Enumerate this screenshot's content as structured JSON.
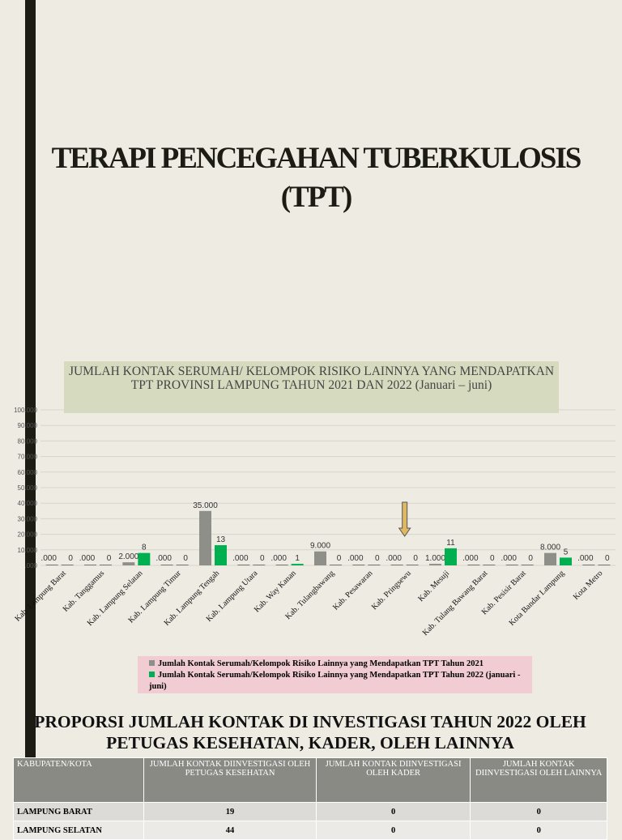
{
  "title": "TERAPI PENCEGAHAN TUBERKULOSIS (TPT)",
  "chart_data": {
    "type": "bar",
    "title": "JUMLAH KONTAK SERUMAH/ KELOMPOK RISIKO LAINNYA YANG MENDAPATKAN TPT PROVINSI LAMPUNG TAHUN 2021 DAN 2022 (Januari – juni)",
    "categories": [
      "Kab. Lampung Barat",
      "Kab. Tanggamus",
      "Kab. Lampung Selatan",
      "Kab. Lampung Timur",
      "Kab. Lampung Tengah",
      "Kab. Lampung Utara",
      "Kab. Way Kanan",
      "Kab. Tulangbawang",
      "Kab. Pesawaran",
      "Kab. Pringsewu",
      "Kab. Mesuji",
      "Kab. Tulang Bawang Barat",
      "Kab. Pesisir Barat",
      "Kota Bandar Lampung",
      "Kota Metro"
    ],
    "series": [
      {
        "name": "Jumlah Kontak Serumah/Kelompok Risiko Lainnya yang Mendapatkan TPT Tahun 2021",
        "color": "#8f8f8a",
        "values": [
          0,
          0,
          2,
          0,
          35,
          0,
          0,
          9,
          0,
          0,
          1,
          0,
          0,
          8,
          0
        ],
        "labels": [
          ".000",
          ".000",
          "2.000",
          ".000",
          "35.000",
          ".000",
          ".000",
          "9.000",
          ".000",
          ".000",
          "1.000",
          ".000",
          ".000",
          "8.000",
          ".000"
        ]
      },
      {
        "name": "Jumlah Kontak Serumah/Kelompok Risiko Lainnya yang Mendapatkan TPT Tahun 2022 (januari - juni)",
        "color": "#00b050",
        "values": [
          0,
          0,
          8,
          0,
          13,
          0,
          1,
          0,
          0,
          0,
          11,
          0,
          0,
          5,
          0
        ],
        "labels": [
          "0",
          "0",
          "8",
          "0",
          "13",
          "0",
          "1",
          "0",
          "0",
          "0",
          "11",
          "0",
          "0",
          "5",
          "0"
        ]
      }
    ],
    "yticks": [
      ".000",
      "10.000",
      "20.000",
      "30.000",
      "40.000",
      "50.000",
      "60.000",
      "70.000",
      "80.000",
      "90.000",
      "100.000"
    ],
    "ylim": [
      0,
      100
    ],
    "grid": true,
    "legend": "bottom",
    "annotation": "arrow pointing down at Kab. Pringsewu",
    "arrow_color": "#e0b864"
  },
  "table": {
    "heading": "PROPORSI JUMLAH KONTAK DI INVESTIGASI TAHUN 2022 OLEH PETUGAS KESEHATAN, KADER, OLEH LAINNYA",
    "headers": [
      "KABUPATEN/KOTA",
      "JUMLAH KONTAK DIINVESTIGASI OLEH PETUGAS KESEHATAN",
      "JUMLAH KONTAK DIINVESTIGASI OLEH KADER",
      "JUMLAH KONTAK DIINVESTIGASI OLEH LAINNYA"
    ],
    "rows": [
      [
        "LAMPUNG BARAT",
        "19",
        "0",
        "0"
      ],
      [
        "LAMPUNG SELATAN",
        "44",
        "0",
        "0"
      ]
    ]
  }
}
